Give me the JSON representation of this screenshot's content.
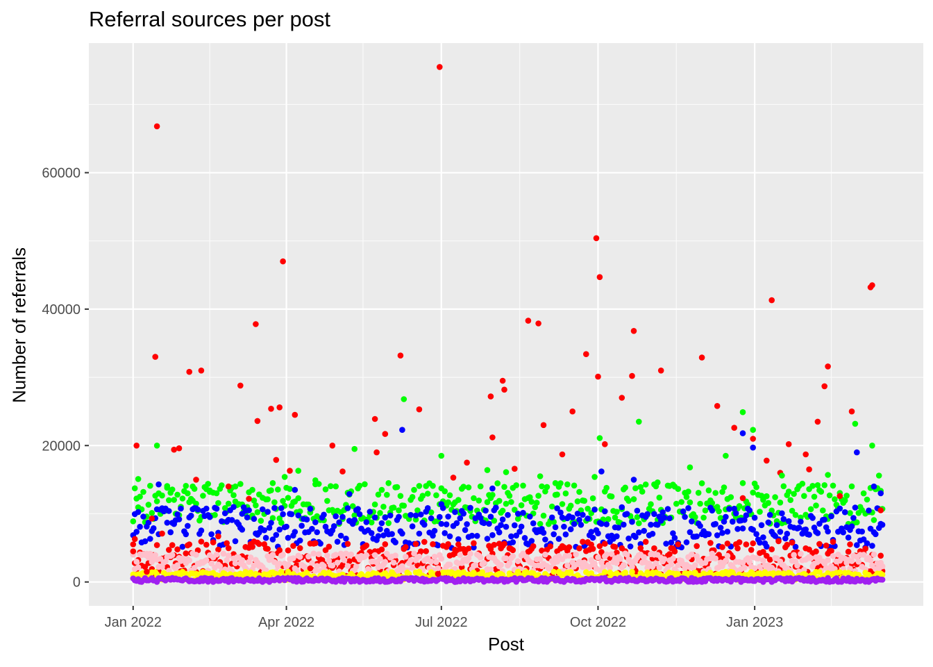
{
  "chart_data": {
    "type": "scatter",
    "title": "Referral sources per post",
    "xlabel": "Post",
    "ylabel": "Number of referrals",
    "x_axis": {
      "kind": "date",
      "range": [
        "2021-12-06",
        "2023-04-10"
      ],
      "tick_labels": [
        "Jan 2022",
        "Apr 2022",
        "Jul 2022",
        "Oct 2022",
        "Jan 2023"
      ],
      "tick_dates": [
        "2022-01-01",
        "2022-04-01",
        "2022-07-01",
        "2022-10-01",
        "2023-01-01"
      ],
      "minor_dates": [
        "2022-02-15",
        "2022-05-16",
        "2022-08-16",
        "2022-11-16",
        "2023-02-15"
      ]
    },
    "y_axis": {
      "range": [
        -3500,
        79000
      ],
      "ticks": [
        0,
        20000,
        40000,
        60000
      ],
      "tick_labels": [
        "0",
        "20000",
        "40000",
        "60000"
      ],
      "minor_ticks": [
        10000,
        30000,
        50000,
        70000
      ]
    },
    "grid": true,
    "legend": "none",
    "series": [
      {
        "color": "#ff0000",
        "points": [
          [
            "2022-01-01",
            4500
          ],
          [
            "2022-01-02",
            6300
          ],
          [
            "2022-01-03",
            20000
          ],
          [
            "2022-01-09",
            1500
          ],
          [
            "2022-01-12",
            9300
          ],
          [
            "2022-01-14",
            33000
          ],
          [
            "2022-01-15",
            66800
          ],
          [
            "2022-01-18",
            7100
          ],
          [
            "2022-01-25",
            19400
          ],
          [
            "2022-01-28",
            19600
          ],
          [
            "2022-02-03",
            30800
          ],
          [
            "2022-02-07",
            15000
          ],
          [
            "2022-02-10",
            31000
          ],
          [
            "2022-02-20",
            6700
          ],
          [
            "2022-02-26",
            14000
          ],
          [
            "2022-03-05",
            28800
          ],
          [
            "2022-03-10",
            12200
          ],
          [
            "2022-03-14",
            37800
          ],
          [
            "2022-03-15",
            23600
          ],
          [
            "2022-03-23",
            25400
          ],
          [
            "2022-03-26",
            17900
          ],
          [
            "2022-03-28",
            25600
          ],
          [
            "2022-03-30",
            47000
          ],
          [
            "2022-04-03",
            16300
          ],
          [
            "2022-04-06",
            24500
          ],
          [
            "2022-04-15",
            2000
          ],
          [
            "2022-04-28",
            20000
          ],
          [
            "2022-05-04",
            16200
          ],
          [
            "2022-05-23",
            23900
          ],
          [
            "2022-05-24",
            19000
          ],
          [
            "2022-05-29",
            21700
          ],
          [
            "2022-06-07",
            33200
          ],
          [
            "2022-06-18",
            25300
          ],
          [
            "2022-06-29",
            1200
          ],
          [
            "2022-06-30",
            75500
          ],
          [
            "2022-07-08",
            15300
          ],
          [
            "2022-07-16",
            17500
          ],
          [
            "2022-07-30",
            27200
          ],
          [
            "2022-07-31",
            21200
          ],
          [
            "2022-08-06",
            29500
          ],
          [
            "2022-08-07",
            28200
          ],
          [
            "2022-08-13",
            16600
          ],
          [
            "2022-08-21",
            38300
          ],
          [
            "2022-08-27",
            37900
          ],
          [
            "2022-08-30",
            23000
          ],
          [
            "2022-09-10",
            18700
          ],
          [
            "2022-09-16",
            25000
          ],
          [
            "2022-09-24",
            33400
          ],
          [
            "2022-09-30",
            50400
          ],
          [
            "2022-10-01",
            30100
          ],
          [
            "2022-10-02",
            44700
          ],
          [
            "2022-10-05",
            20200
          ],
          [
            "2022-10-15",
            27000
          ],
          [
            "2022-10-21",
            30200
          ],
          [
            "2022-10-22",
            36800
          ],
          [
            "2022-11-07",
            31000
          ],
          [
            "2022-12-01",
            32900
          ],
          [
            "2022-12-10",
            25800
          ],
          [
            "2022-12-20",
            22600
          ],
          [
            "2022-12-25",
            12300
          ],
          [
            "2022-12-31",
            21000
          ],
          [
            "2023-01-08",
            17800
          ],
          [
            "2023-01-11",
            41300
          ],
          [
            "2023-01-16",
            16000
          ],
          [
            "2023-01-21",
            20200
          ],
          [
            "2023-01-31",
            18700
          ],
          [
            "2023-02-02",
            16500
          ],
          [
            "2023-02-07",
            23500
          ],
          [
            "2023-02-11",
            28700
          ],
          [
            "2023-02-13",
            31600
          ],
          [
            "2023-02-20",
            12600
          ],
          [
            "2023-02-27",
            25000
          ],
          [
            "2023-03-10",
            43200
          ],
          [
            "2023-03-11",
            43500
          ],
          [
            "2023-03-16",
            10500
          ]
        ]
      },
      {
        "color": "#00ff00",
        "points": [
          [
            "2022-01-04",
            15100
          ],
          [
            "2022-01-15",
            20000
          ],
          [
            "2022-01-21",
            13800
          ],
          [
            "2022-02-05",
            14000
          ],
          [
            "2022-02-15",
            13200
          ],
          [
            "2022-03-02",
            14000
          ],
          [
            "2022-03-12",
            13500
          ],
          [
            "2022-03-24",
            14500
          ],
          [
            "2022-03-31",
            15400
          ],
          [
            "2022-04-08",
            16300
          ],
          [
            "2022-04-18",
            14900
          ],
          [
            "2022-05-11",
            19500
          ],
          [
            "2022-05-31",
            14500
          ],
          [
            "2022-06-09",
            26800
          ],
          [
            "2022-07-01",
            18500
          ],
          [
            "2022-07-28",
            16400
          ],
          [
            "2022-08-08",
            16100
          ],
          [
            "2022-08-28",
            15500
          ],
          [
            "2022-09-06",
            14500
          ],
          [
            "2022-09-29",
            15400
          ],
          [
            "2022-10-02",
            21100
          ],
          [
            "2022-10-25",
            23500
          ],
          [
            "2022-11-05",
            14600
          ],
          [
            "2022-11-24",
            16800
          ],
          [
            "2022-12-15",
            18500
          ],
          [
            "2022-12-25",
            24900
          ],
          [
            "2022-12-31",
            22300
          ],
          [
            "2023-01-17",
            15600
          ],
          [
            "2023-02-13",
            15700
          ],
          [
            "2023-03-01",
            23200
          ],
          [
            "2023-03-11",
            20000
          ],
          [
            "2023-03-15",
            15600
          ]
        ]
      },
      {
        "color": "#0000ff",
        "points": [
          [
            "2022-01-16",
            14300
          ],
          [
            "2022-03-06",
            10000
          ],
          [
            "2022-04-06",
            13500
          ],
          [
            "2022-05-08",
            12900
          ],
          [
            "2022-06-08",
            22300
          ],
          [
            "2022-07-01",
            11400
          ],
          [
            "2022-07-31",
            13700
          ],
          [
            "2022-10-03",
            16200
          ],
          [
            "2022-10-22",
            15000
          ],
          [
            "2022-12-25",
            21800
          ],
          [
            "2022-12-31",
            19700
          ],
          [
            "2023-03-02",
            19000
          ],
          [
            "2023-03-12",
            14000
          ],
          [
            "2023-03-16",
            13000
          ]
        ]
      }
    ],
    "bands": [
      {
        "color": "#00ff00",
        "y_range": [
          8500,
          14500
        ]
      },
      {
        "color": "#0000ff",
        "y_range": [
          5000,
          11000
        ]
      },
      {
        "color": "#ff0000",
        "y_range": [
          800,
          6000
        ]
      },
      {
        "color": "#ffc0cb",
        "y_range": [
          1500,
          4200
        ]
      },
      {
        "color": "#ffff00",
        "y_range": [
          300,
          1500
        ]
      },
      {
        "color": "#a020f0",
        "y_range": [
          0,
          600
        ]
      }
    ]
  }
}
